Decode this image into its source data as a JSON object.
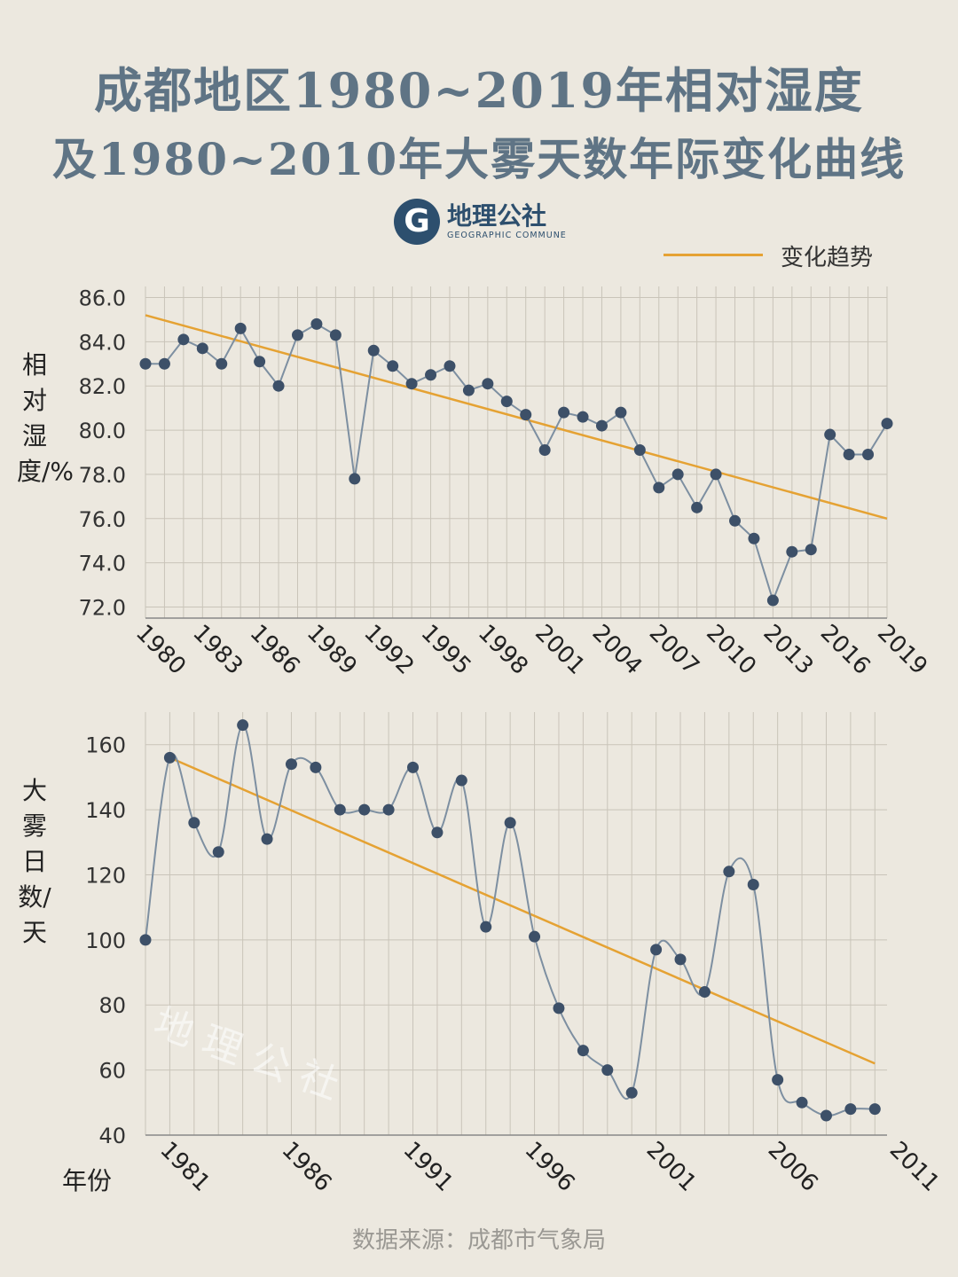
{
  "title_line1": "成都地区1980~2019年相对湿度",
  "title_line2": "及1980~2010年大雾天数年际变化曲线",
  "logo": {
    "text_cn": "地理公社",
    "text_en": "GEOGRAPHIC COMMUNE",
    "mark": "G"
  },
  "legend": {
    "trend_label": "变化趋势"
  },
  "watermark": "地理公社",
  "source": "数据来源：成都市气象局",
  "colors": {
    "line": "#7d8fa1",
    "point": "#3d5068",
    "trend": "#e5a233",
    "grid": "#c9c4b9",
    "title": "#5f7485"
  },
  "chart_data": [
    {
      "type": "line",
      "ylabel": "相对湿度/%",
      "xlabel": "",
      "ylim": [
        71.5,
        86.5
      ],
      "xlim": [
        1980,
        2019
      ],
      "yticks": [
        "86.0",
        "84.0",
        "82.0",
        "80.0",
        "78.0",
        "76.0",
        "74.0",
        "72.0"
      ],
      "ytick_values": [
        86,
        84,
        82,
        80,
        78,
        76,
        74,
        72
      ],
      "xticks": [
        "1980",
        "1983",
        "1986",
        "1989",
        "1992",
        "1995",
        "1998",
        "2001",
        "2004",
        "2007",
        "2010",
        "2013",
        "2016",
        "2019"
      ],
      "xtick_values": [
        1980,
        1983,
        1986,
        1989,
        1992,
        1995,
        1998,
        2001,
        2004,
        2007,
        2010,
        2013,
        2016,
        2019
      ],
      "grid": true,
      "series": [
        {
          "x": [
            1980,
            1981,
            1982,
            1983,
            1984,
            1985,
            1986,
            1987,
            1988,
            1989,
            1990,
            1991,
            1992,
            1993,
            1994,
            1995,
            1996,
            1997,
            1998,
            1999,
            2000,
            2001,
            2002,
            2003,
            2004,
            2005,
            2006,
            2007,
            2008,
            2009,
            2010,
            2011,
            2012,
            2013,
            2014,
            2015,
            2016,
            2017,
            2018,
            2019
          ],
          "values": [
            83.0,
            83.0,
            84.1,
            83.7,
            83.0,
            84.6,
            83.1,
            82.0,
            84.3,
            84.8,
            84.3,
            77.8,
            83.6,
            82.9,
            82.1,
            82.5,
            82.9,
            81.8,
            82.1,
            81.3,
            80.7,
            79.1,
            80.8,
            80.6,
            80.2,
            80.8,
            79.1,
            77.4,
            78.0,
            76.5,
            78.0,
            75.9,
            75.1,
            72.3,
            74.5,
            74.6,
            79.8,
            78.9,
            78.9,
            80.3
          ]
        }
      ],
      "trend": {
        "x": [
          1980,
          2019
        ],
        "values": [
          85.2,
          76.0
        ]
      }
    },
    {
      "type": "line",
      "ylabel": "大雾日数/天",
      "xlabel": "年份",
      "ylim": [
        40,
        170
      ],
      "xlim": [
        1981,
        2011
      ],
      "yticks": [
        "160",
        "140",
        "120",
        "100",
        "80",
        "60",
        "40"
      ],
      "ytick_values": [
        160,
        140,
        120,
        100,
        80,
        60,
        40
      ],
      "xticks": [
        "1981",
        "1986",
        "1991",
        "1996",
        "2001",
        "2006",
        "2011"
      ],
      "xtick_values": [
        1981,
        1986,
        1991,
        1996,
        2001,
        2006,
        2011
      ],
      "grid": true,
      "series": [
        {
          "x": [
            1980,
            1981,
            1982,
            1983,
            1984,
            1985,
            1986,
            1987,
            1988,
            1989,
            1990,
            1991,
            1992,
            1993,
            1994,
            1995,
            1996,
            1997,
            1998,
            1999,
            2000,
            2001,
            2002,
            2003,
            2004,
            2005,
            2006,
            2007,
            2008,
            2009,
            2010
          ],
          "values": [
            100,
            156,
            136,
            127,
            166,
            131,
            154,
            153,
            140,
            140,
            140,
            153,
            133,
            149,
            104,
            136,
            101,
            79,
            66,
            60,
            53,
            97,
            94,
            84,
            121,
            117,
            57,
            50,
            46,
            48,
            48
          ]
        }
      ],
      "trend": {
        "x": [
          1981,
          2010
        ],
        "values": [
          156,
          62
        ]
      }
    }
  ]
}
